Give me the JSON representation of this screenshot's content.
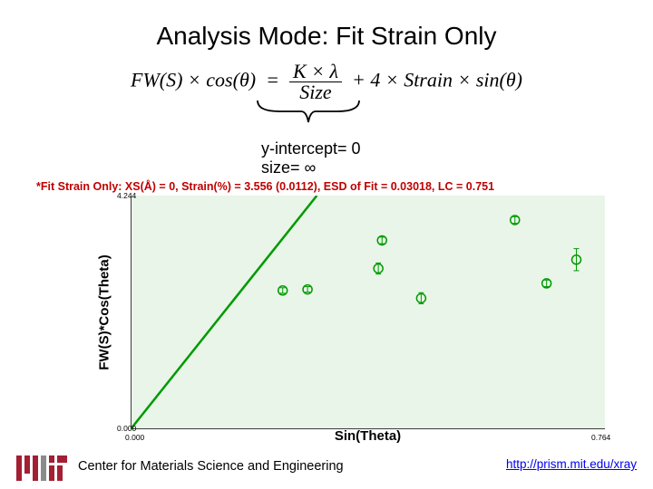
{
  "title": "Analysis Mode: Fit Strain Only",
  "formula": {
    "lhs_fw": "FW",
    "lhs_s": "S",
    "lhs_cos": "cos",
    "lhs_theta": "θ",
    "eq": "=",
    "num": "K × λ",
    "den": "Size",
    "plus": "+ 4 × Strain × sin",
    "theta2": "θ"
  },
  "y_intercept": "y-intercept= 0",
  "size_line": "size= ∞",
  "fit_strain_line": "*Fit Strain Only: XS(Å) = 0, Strain(%) = 3.556 (0.0112), ESD of Fit = 0.03018, LC = 0.751",
  "chart": {
    "type": "scatter-with-fit-line",
    "background_color": "#e8f5e8",
    "line_color": "#009900",
    "marker_stroke": "#009900",
    "line_width": 2.5,
    "marker_radius": 5,
    "xlim": [
      0.0,
      0.764
    ],
    "ylim": [
      0.0,
      4.244
    ],
    "xlabel": "Sin(Theta)",
    "ylabel": "FW(S)*Cos(Theta)",
    "xtick_labels": [
      "0.000",
      "0.764"
    ],
    "ytick_labels": [
      "0.000",
      "4.244"
    ],
    "fit_line": {
      "x0": 0.0,
      "y0": 0.0,
      "x1": 0.3,
      "y1": 4.244
    },
    "points": [
      {
        "x": 0.245,
        "y": 2.52,
        "err": 0.05
      },
      {
        "x": 0.285,
        "y": 2.54,
        "err": 0.05
      },
      {
        "x": 0.399,
        "y": 2.92,
        "err": 0.1
      },
      {
        "x": 0.405,
        "y": 3.43,
        "err": 0.06
      },
      {
        "x": 0.468,
        "y": 2.38,
        "err": 0.1
      },
      {
        "x": 0.619,
        "y": 3.8,
        "err": 0.06
      },
      {
        "x": 0.67,
        "y": 2.65,
        "err": 0.06
      },
      {
        "x": 0.718,
        "y": 3.08,
        "err": 0.2
      }
    ]
  },
  "footer": {
    "center": "Center for Materials Science and Engineering",
    "link": "http://prism.mit.edu/xray",
    "logo_bar_color": "#a31f34",
    "logo_text": "MIT"
  }
}
